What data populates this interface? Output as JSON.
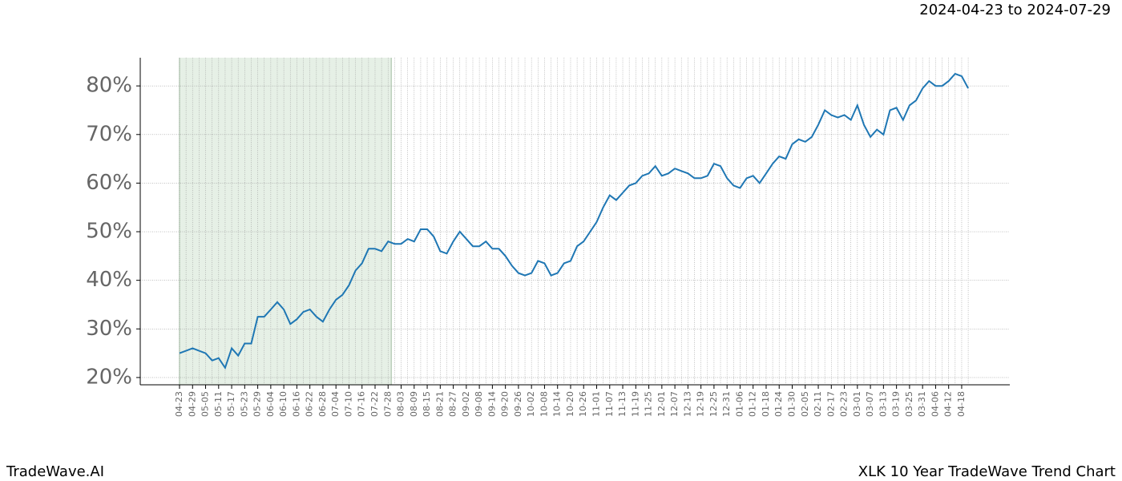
{
  "chart_data": {
    "type": "line",
    "subtitle": "2024-04-23 to 2024-07-29",
    "footer_left": "TradeWave.AI",
    "footer_right": "XLK 10 Year TradeWave Trend Chart",
    "categories": [
      "04-23",
      null,
      "04-29",
      null,
      "05-05",
      null,
      "05-11",
      null,
      "05-17",
      null,
      "05-23",
      null,
      "05-29",
      null,
      "06-04",
      null,
      "06-10",
      null,
      "06-16",
      null,
      "06-22",
      null,
      "06-28",
      null,
      "07-04",
      null,
      "07-10",
      null,
      "07-16",
      null,
      "07-22",
      null,
      "07-28",
      null,
      "08-03",
      null,
      "08-09",
      null,
      "08-15",
      null,
      "08-21",
      null,
      "08-27",
      null,
      "09-02",
      null,
      "09-08",
      null,
      "09-14",
      null,
      "09-20",
      null,
      "09-26",
      null,
      "10-02",
      null,
      "10-08",
      null,
      "10-14",
      null,
      "10-20",
      null,
      "10-26",
      null,
      "11-01",
      null,
      "11-07",
      null,
      "11-13",
      null,
      "11-19",
      null,
      "11-25",
      null,
      "12-01",
      null,
      "12-07",
      null,
      "12-13",
      null,
      "12-19",
      null,
      "12-25",
      null,
      "12-31",
      null,
      "01-06",
      null,
      "01-12",
      null,
      "01-18",
      null,
      "01-24",
      null,
      "01-30",
      null,
      "02-05",
      null,
      "02-11",
      null,
      "02-17",
      null,
      "02-23",
      null,
      "03-01",
      null,
      "03-07",
      null,
      "03-13",
      null,
      "03-19",
      null,
      "03-25",
      null,
      "03-31",
      null,
      "04-06",
      null,
      "04-12",
      null,
      "04-18",
      null
    ],
    "series": [
      {
        "color": "#1f77b4",
        "values": [
          25,
          25.5,
          26,
          25.5,
          25,
          23.5,
          24,
          22,
          26,
          24.5,
          27,
          27,
          32.5,
          32.5,
          34,
          35.5,
          34,
          31,
          32,
          33.5,
          34,
          32.5,
          31.5,
          34,
          36,
          37,
          39,
          42,
          43.5,
          46.5,
          46.5,
          46,
          48,
          47.5,
          47.5,
          48.5,
          48,
          50.5,
          50.5,
          49,
          46,
          45.5,
          48,
          50,
          48.5,
          47,
          47,
          48,
          46.5,
          46.5,
          45,
          43,
          41.5,
          41,
          41.5,
          44,
          43.5,
          41,
          41.5,
          43.5,
          44,
          47,
          48,
          50,
          52,
          55,
          57.5,
          56.5,
          58,
          59.5,
          60,
          61.5,
          62,
          63.5,
          61.5,
          62,
          63,
          62.5,
          62,
          61,
          61,
          61.5,
          64,
          63.5,
          61,
          59.5,
          59,
          61,
          61.5,
          60,
          62,
          64,
          65.5,
          65,
          68,
          69,
          68.5,
          69.5,
          72,
          75,
          74,
          73.5,
          74,
          73,
          76,
          72,
          69.5,
          71,
          70,
          75,
          75.5,
          73,
          76,
          77,
          79.5,
          81,
          80,
          80,
          81,
          82.5,
          82,
          79.5
        ]
      }
    ],
    "highlight": {
      "from": "04-23",
      "to": "07-28",
      "color": "#e6f0e6"
    },
    "ylim": [
      18.5,
      85.8
    ],
    "yticks": [
      {
        "value": 20,
        "label": "20%"
      },
      {
        "value": 30,
        "label": "30%"
      },
      {
        "value": 40,
        "label": "40%"
      },
      {
        "value": 50,
        "label": "50%"
      },
      {
        "value": 60,
        "label": "60%"
      },
      {
        "value": 70,
        "label": "70%"
      },
      {
        "value": 80,
        "label": "80%"
      }
    ],
    "grid": true
  }
}
